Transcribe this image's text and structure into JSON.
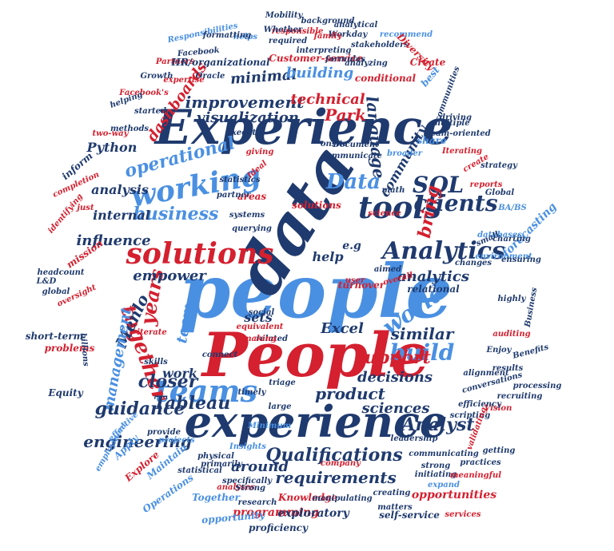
{
  "colors": {
    "navy": "#1f3a6e",
    "blue": "#4a90e2",
    "red": "#d4202f"
  },
  "words": [
    {
      "text": "people",
      "color": "blue"
    },
    {
      "text": "People",
      "color": "red"
    },
    {
      "text": "Experience",
      "color": "navy"
    },
    {
      "text": "experience",
      "color": "navy"
    },
    {
      "text": "data",
      "color": "navy"
    },
    {
      "text": "solutions",
      "color": "red"
    },
    {
      "text": "working",
      "color": "blue"
    },
    {
      "text": "tools",
      "color": "navy"
    },
    {
      "text": "teams",
      "color": "blue"
    },
    {
      "text": "clients",
      "color": "navy"
    },
    {
      "text": "SQL",
      "color": "navy"
    },
    {
      "text": "Analytics",
      "color": "navy"
    },
    {
      "text": "Data",
      "color": "blue"
    },
    {
      "text": "business",
      "color": "blue"
    },
    {
      "text": "world",
      "color": "blue"
    },
    {
      "text": "build",
      "color": "blue"
    },
    {
      "text": "together",
      "color": "red"
    },
    {
      "text": "years",
      "color": "red"
    },
    {
      "text": "improvement",
      "color": "navy"
    },
    {
      "text": "visualization",
      "color": "navy"
    },
    {
      "text": "minimal",
      "color": "navy"
    },
    {
      "text": "technical",
      "color": "red"
    },
    {
      "text": "building",
      "color": "blue"
    },
    {
      "text": "dashboards",
      "color": "red"
    },
    {
      "text": "operational",
      "color": "blue"
    },
    {
      "text": "Python",
      "color": "navy"
    },
    {
      "text": "analysis",
      "color": "navy"
    },
    {
      "text": "internal",
      "color": "navy"
    },
    {
      "text": "influence",
      "color": "navy"
    },
    {
      "text": "empower",
      "color": "navy"
    },
    {
      "text": "Menlo",
      "color": "navy"
    },
    {
      "text": "Park",
      "color": "red"
    },
    {
      "text": "language",
      "color": "navy"
    },
    {
      "text": "community",
      "color": "navy"
    },
    {
      "text": "bring",
      "color": "red"
    },
    {
      "text": "help",
      "color": "navy"
    },
    {
      "text": "e.g",
      "color": "navy"
    },
    {
      "text": "analytics",
      "color": "navy"
    },
    {
      "text": "similar",
      "color": "navy"
    },
    {
      "text": "Excel",
      "color": "navy"
    },
    {
      "text": "sets",
      "color": "navy"
    },
    {
      "text": "work",
      "color": "navy"
    },
    {
      "text": "team",
      "color": "blue"
    },
    {
      "text": "management",
      "color": "blue"
    },
    {
      "text": "closer",
      "color": "navy"
    },
    {
      "text": "Tableau",
      "color": "navy"
    },
    {
      "text": "product",
      "color": "navy"
    },
    {
      "text": "support",
      "color": "red"
    },
    {
      "text": "decisions",
      "color": "navy"
    },
    {
      "text": "sciences",
      "color": "navy"
    },
    {
      "text": "Analyst",
      "color": "navy"
    },
    {
      "text": "guidance",
      "color": "navy"
    },
    {
      "text": "engineering",
      "color": "navy"
    },
    {
      "text": "around",
      "color": "navy"
    },
    {
      "text": "Qualifications",
      "color": "navy"
    },
    {
      "text": "requirements",
      "color": "navy"
    },
    {
      "text": "opportunities",
      "color": "red"
    },
    {
      "text": "programming",
      "color": "red"
    },
    {
      "text": "opportunity",
      "color": "blue"
    },
    {
      "text": "exploratory",
      "color": "navy"
    },
    {
      "text": "proficiency",
      "color": "navy"
    },
    {
      "text": "self-service",
      "color": "navy"
    },
    {
      "text": "Knowledge",
      "color": "red"
    },
    {
      "text": "Together",
      "color": "blue"
    },
    {
      "text": "Operations",
      "color": "blue"
    },
    {
      "text": "Maintain",
      "color": "blue"
    },
    {
      "text": "Explore",
      "color": "red"
    },
    {
      "text": "Apply",
      "color": "blue"
    },
    {
      "text": "effective",
      "color": "blue"
    },
    {
      "text": "employment",
      "color": "blue"
    },
    {
      "text": "Equity",
      "color": "navy"
    },
    {
      "text": "short-term",
      "color": "navy"
    },
    {
      "text": "problems",
      "color": "red"
    },
    {
      "text": "oversight",
      "color": "red"
    },
    {
      "text": "billions",
      "color": "navy"
    },
    {
      "text": "headcount",
      "color": "navy"
    },
    {
      "text": "L&D",
      "color": "navy"
    },
    {
      "text": "mission",
      "color": "red"
    },
    {
      "text": "global",
      "color": "navy"
    },
    {
      "text": "Responsibilities",
      "color": "blue"
    },
    {
      "text": "Partners",
      "color": "red"
    },
    {
      "text": "Facebook",
      "color": "navy"
    },
    {
      "text": "HR/organizational",
      "color": "navy"
    },
    {
      "text": "Growth",
      "color": "navy"
    },
    {
      "text": "Oracle",
      "color": "navy"
    },
    {
      "text": "Customer-service",
      "color": "red"
    },
    {
      "text": "formulas",
      "color": "navy"
    },
    {
      "text": "interpreting",
      "color": "navy"
    },
    {
      "text": "analyzing",
      "color": "navy"
    },
    {
      "text": "conditional",
      "color": "red"
    },
    {
      "text": "stakeholders",
      "color": "navy"
    },
    {
      "text": "Workday",
      "color": "navy"
    },
    {
      "text": "analytical",
      "color": "navy"
    },
    {
      "text": "background",
      "color": "navy"
    },
    {
      "text": "Mobility",
      "color": "navy"
    },
    {
      "text": "helps",
      "color": "blue"
    },
    {
      "text": "required",
      "color": "navy"
    },
    {
      "text": "responsible",
      "color": "red"
    },
    {
      "text": "family",
      "color": "red"
    },
    {
      "text": "recommend",
      "color": "blue"
    },
    {
      "text": "Diversity",
      "color": "red"
    },
    {
      "text": "Create",
      "color": "red"
    },
    {
      "text": "best",
      "color": "blue"
    },
    {
      "text": "communities",
      "color": "navy"
    },
    {
      "text": "Facebook's",
      "color": "red"
    },
    {
      "text": "formatting",
      "color": "navy"
    },
    {
      "text": "started",
      "color": "navy"
    },
    {
      "text": "Whether",
      "color": "navy"
    },
    {
      "text": "Document",
      "color": "navy"
    },
    {
      "text": "multiple",
      "color": "navy"
    },
    {
      "text": "team-oriented",
      "color": "navy"
    },
    {
      "text": "driving",
      "color": "navy"
    },
    {
      "text": "share",
      "color": "blue"
    },
    {
      "text": "Iterating",
      "color": "red"
    },
    {
      "text": "communicate",
      "color": "navy"
    },
    {
      "text": "broader",
      "color": "blue"
    },
    {
      "text": "onsite",
      "color": "navy"
    },
    {
      "text": "giving",
      "color": "red"
    },
    {
      "text": "execute",
      "color": "navy"
    },
    {
      "text": "Ideal",
      "color": "red"
    },
    {
      "text": "statistics",
      "color": "navy"
    },
    {
      "text": "areas",
      "color": "red"
    },
    {
      "text": "partner",
      "color": "navy"
    },
    {
      "text": "math",
      "color": "navy"
    },
    {
      "text": "create",
      "color": "red"
    },
    {
      "text": "strategy",
      "color": "navy"
    },
    {
      "text": "Global",
      "color": "navy"
    },
    {
      "text": "reports",
      "color": "red"
    },
    {
      "text": "BA/BS",
      "color": "blue"
    },
    {
      "text": "forecasting",
      "color": "blue"
    },
    {
      "text": "charting",
      "color": "navy"
    },
    {
      "text": "databases",
      "color": "blue"
    },
    {
      "text": "changes",
      "color": "navy"
    },
    {
      "text": "small",
      "color": "navy"
    },
    {
      "text": "environment",
      "color": "blue"
    },
    {
      "text": "ensuring",
      "color": "navy"
    },
    {
      "text": "systems",
      "color": "navy"
    },
    {
      "text": "querying",
      "color": "navy"
    },
    {
      "text": "solutions",
      "color": "red"
    },
    {
      "text": "science",
      "color": "red"
    },
    {
      "text": "aimed",
      "color": "navy"
    },
    {
      "text": "turnover",
      "color": "red"
    },
    {
      "text": "overall",
      "color": "red"
    },
    {
      "text": "relational",
      "color": "navy"
    },
    {
      "text": "highly",
      "color": "navy"
    },
    {
      "text": "Business",
      "color": "navy"
    },
    {
      "text": "auditing",
      "color": "red"
    },
    {
      "text": "Enjoy",
      "color": "navy"
    },
    {
      "text": "results",
      "color": "navy"
    },
    {
      "text": "Benefits",
      "color": "navy"
    },
    {
      "text": "processing",
      "color": "navy"
    },
    {
      "text": "recruiting",
      "color": "navy"
    },
    {
      "text": "Vision",
      "color": "red"
    },
    {
      "text": "alignment",
      "color": "navy"
    },
    {
      "text": "conversations",
      "color": "navy"
    },
    {
      "text": "efficiency",
      "color": "navy"
    },
    {
      "text": "scripting",
      "color": "navy"
    },
    {
      "text": "validating",
      "color": "red"
    },
    {
      "text": "leadership",
      "color": "navy"
    },
    {
      "text": "communicating",
      "color": "navy"
    },
    {
      "text": "strong",
      "color": "navy"
    },
    {
      "text": "initiating",
      "color": "navy"
    },
    {
      "text": "practices",
      "color": "navy"
    },
    {
      "text": "expand",
      "color": "blue"
    },
    {
      "text": "services",
      "color": "red"
    },
    {
      "text": "meaningful",
      "color": "red"
    },
    {
      "text": "getting",
      "color": "navy"
    },
    {
      "text": "Insights",
      "color": "blue"
    },
    {
      "text": "analyses",
      "color": "red"
    },
    {
      "text": "company",
      "color": "red"
    },
    {
      "text": "manipulating",
      "color": "navy"
    },
    {
      "text": "creating",
      "color": "navy"
    },
    {
      "text": "matters",
      "color": "navy"
    },
    {
      "text": "research",
      "color": "navy"
    },
    {
      "text": "specifically",
      "color": "navy"
    },
    {
      "text": "Strong",
      "color": "navy"
    },
    {
      "text": "primarily",
      "color": "navy"
    },
    {
      "text": "statistical",
      "color": "navy"
    },
    {
      "text": "physical",
      "color": "navy"
    },
    {
      "text": "provide",
      "color": "navy"
    },
    {
      "text": "projects",
      "color": "blue"
    },
    {
      "text": "Minimum",
      "color": "blue"
    },
    {
      "text": "timely",
      "color": "navy"
    },
    {
      "text": "triage",
      "color": "navy"
    },
    {
      "text": "large",
      "color": "navy"
    },
    {
      "text": "related",
      "color": "navy"
    },
    {
      "text": "social",
      "color": "navy"
    },
    {
      "text": "equivalent",
      "color": "red"
    },
    {
      "text": "making",
      "color": "red"
    },
    {
      "text": "connect",
      "color": "navy"
    },
    {
      "text": "skills",
      "color": "navy"
    },
    {
      "text": "iterate",
      "color": "red"
    },
    {
      "text": "helping",
      "color": "navy"
    },
    {
      "text": "methods",
      "color": "navy"
    },
    {
      "text": "expertise",
      "color": "red"
    },
    {
      "text": "identifying",
      "color": "red"
    },
    {
      "text": "completion",
      "color": "red"
    },
    {
      "text": "two-way",
      "color": "red"
    },
    {
      "text": "inform",
      "color": "navy"
    },
    {
      "text": "just",
      "color": "red"
    },
    {
      "text": "user",
      "color": "red"
    }
  ]
}
